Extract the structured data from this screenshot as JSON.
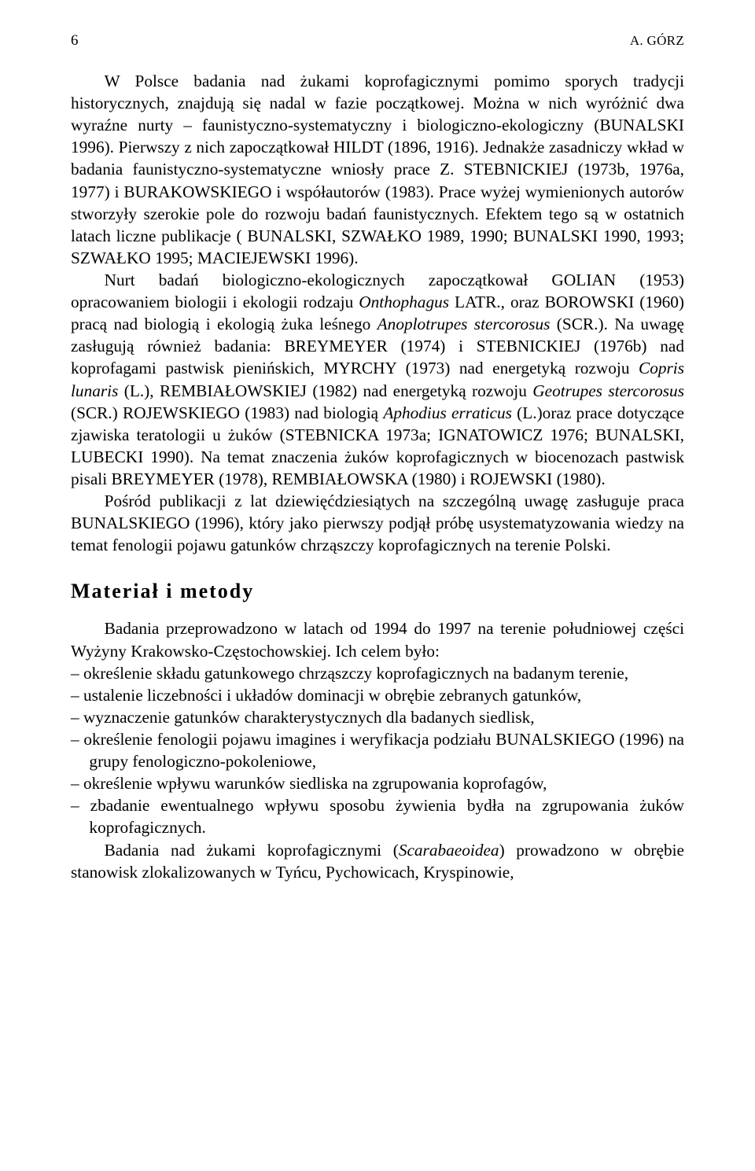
{
  "header": {
    "pageNumber": "6",
    "author": "A. GÓRZ"
  },
  "paragraphs": {
    "p1": "W Polsce badania nad żukami koprofagicznymi pomimo sporych tradycji historycznych, znajdują się nadal w fazie początkowej. Można w nich wyróżnić dwa wyraźne nurty – faunistyczno-systematyczny i biologiczno-ekologiczny (BUNALSKI 1996). Pierwszy z nich zapoczątkował HILDT (1896, 1916). Jednakże zasadniczy wkład w badania faunistyczno-systematyczne wniosły prace Z. STEBNICKIEJ (1973b, 1976a, 1977) i BURAKOWSKIEGO i współautorów (1983). Prace wyżej wymienionych autorów stworzyły szerokie pole do rozwoju badań faunistycznych. Efektem tego są w ostatnich latach liczne publikacje ( BUNALSKI, SZWAŁKO 1989, 1990; BUNALSKI 1990, 1993; SZWAŁKO 1995; MACIEJEWSKI 1996).",
    "p2_pre": "Nurt badań biologiczno-ekologicznych zapoczątkował GOLIAN (1953) opracowaniem biologii i ekologii rodzaju ",
    "p2_it1": "Onthophagus",
    "p2_mid1": " LATR., oraz BOROWSKI (1960) pracą nad biologią i ekologią żuka leśnego ",
    "p2_it2": "Anoplotrupes stercorosus",
    "p2_mid2": " (SCR.). Na uwagę zasługują również badania: BREYMEYER (1974) i STEBNICKIEJ (1976b) nad koprofagami pastwisk pienińskich, MYRCHY (1973) nad energetyką rozwoju ",
    "p2_it3": "Copris lunaris",
    "p2_mid3": " (L.), REMBIAŁOWSKIEJ (1982) nad energetyką rozwoju ",
    "p2_it4": "Geotrupes stercorosus",
    "p2_mid4": " (SCR.) ROJEWSKIEGO (1983) nad biologią ",
    "p2_it5": "Aphodius erraticus",
    "p2_mid5": " (L.)oraz prace dotyczące zjawiska teratologii u żuków (STEBNICKA 1973a; IGNATOWICZ 1976; BUNALSKI, LUBECKI 1990). Na temat znaczenia żuków koprofagicznych w biocenozach pastwisk pisali BREYMEYER (1978), REMBIAŁOWSKA (1980) i ROJEWSKI (1980).",
    "p3": "Pośród publikacji z lat dziewięćdziesiątych na szczególną uwagę zasługuje praca BUNALSKIEGO (1996), który jako pierwszy podjął próbę usystematyzowania wiedzy na temat fenologii pojawu gatunków chrząszczy koprofagicznych na terenie Polski."
  },
  "heading": "Materiał i metody",
  "methods": {
    "intro": "Badania przeprowadzono w latach od 1994 do 1997 na terenie południowej części Wyżyny Krakowsko-Częstochowskiej. Ich celem było:",
    "items": [
      "– określenie składu gatunkowego chrząszczy koprofagicznych na badanym terenie,",
      "– ustalenie liczebności i układów dominacji w obrębie zebranych gatunków,",
      "– wyznaczenie gatunków charakterystycznych dla badanych siedlisk,",
      "– określenie fenologii pojawu imagines i weryfikacja podziału BUNALSKIEGO (1996) na grupy fenologiczno-pokoleniowe,",
      "– określenie wpływu warunków siedliska na zgrupowania koprofagów,",
      "– zbadanie ewentualnego wpływu sposobu żywienia bydła na zgrupowania żuków koprofagicznych."
    ],
    "closing_pre": "Badania nad żukami koprofagicznymi (",
    "closing_it": "Scarabaeoidea",
    "closing_post": ") prowadzono w obrębie stanowisk zlokalizowanych w Tyńcu, Pychowicach, Kryspinowie,"
  }
}
